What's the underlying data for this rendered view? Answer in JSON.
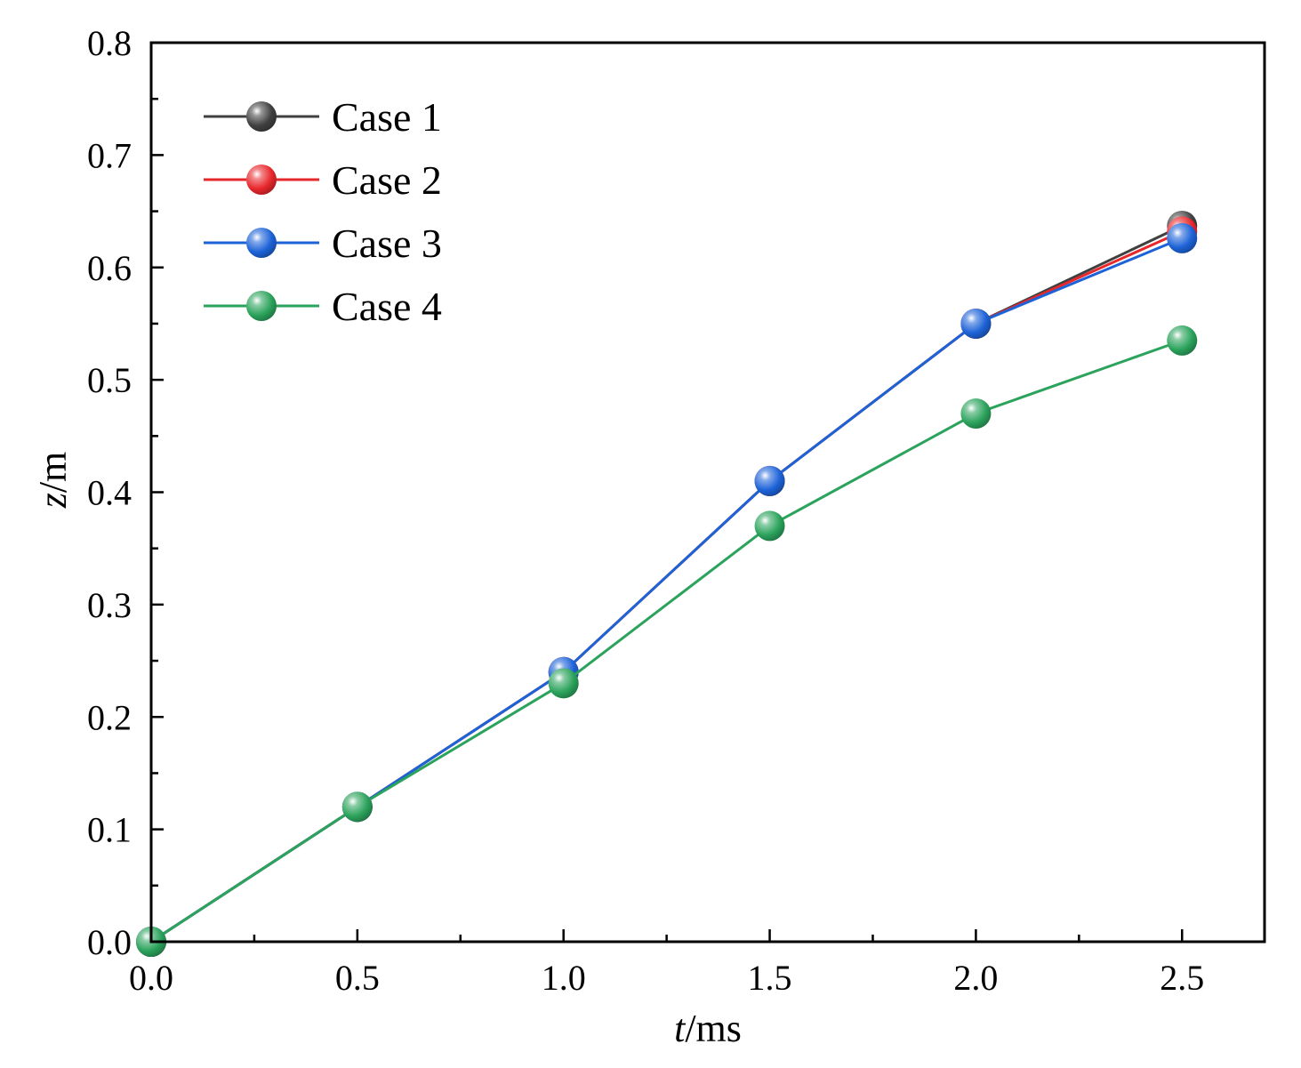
{
  "chart_data": {
    "type": "line",
    "title": "",
    "xlabel": {
      "var": "t",
      "unit": "/ms"
    },
    "ylabel": {
      "var": "z",
      "unit": "/m"
    },
    "xlim": [
      0,
      2.7
    ],
    "ylim": [
      0,
      0.8
    ],
    "xticks": [
      "0.0",
      "0.5",
      "1.0",
      "1.5",
      "2.0",
      "2.5"
    ],
    "yticks": [
      "0.0",
      "0.1",
      "0.2",
      "0.3",
      "0.4",
      "0.5",
      "0.6",
      "0.7",
      "0.8"
    ],
    "grid": false,
    "legend_position": "top-left",
    "x": [
      0.0,
      0.5,
      1.0,
      1.5,
      2.0,
      2.5
    ],
    "series": [
      {
        "name": "Case 1",
        "color": "#404040",
        "values": [
          0.0,
          0.12,
          0.24,
          0.41,
          0.55,
          0.637
        ]
      },
      {
        "name": "Case 2",
        "color": "#e8272c",
        "values": [
          0.0,
          0.12,
          0.24,
          0.41,
          0.55,
          0.632
        ]
      },
      {
        "name": "Case 3",
        "color": "#1d63d8",
        "values": [
          0.0,
          0.12,
          0.24,
          0.41,
          0.55,
          0.626
        ]
      },
      {
        "name": "Case 4",
        "color": "#2ba35c",
        "values": [
          0.0,
          0.12,
          0.23,
          0.37,
          0.47,
          0.535
        ]
      }
    ]
  }
}
